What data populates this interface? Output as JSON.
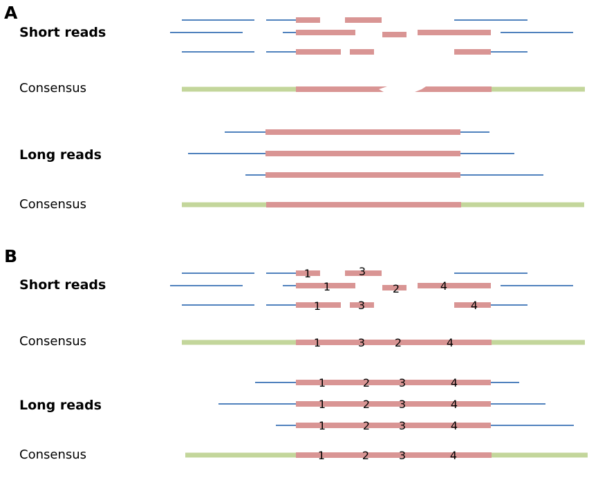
{
  "panels": {
    "a": {
      "label": "A",
      "short_reads_label": "Short reads",
      "consensus_label_1": "Consensus",
      "long_reads_label": "Long reads",
      "consensus_label_2": "Consensus"
    },
    "b": {
      "label": "B",
      "short_reads_label": "Short reads",
      "consensus_label_1": "Consensus",
      "long_reads_label": "Long reads",
      "consensus_label_2": "Consensus"
    }
  },
  "segment_labels": {
    "one": "1",
    "two": "2",
    "three": "3",
    "four": "4"
  },
  "colors": {
    "read_line": "#4f81bd",
    "repeat": "#d99594",
    "consensus": "#c3d69b",
    "text": "#000000"
  }
}
